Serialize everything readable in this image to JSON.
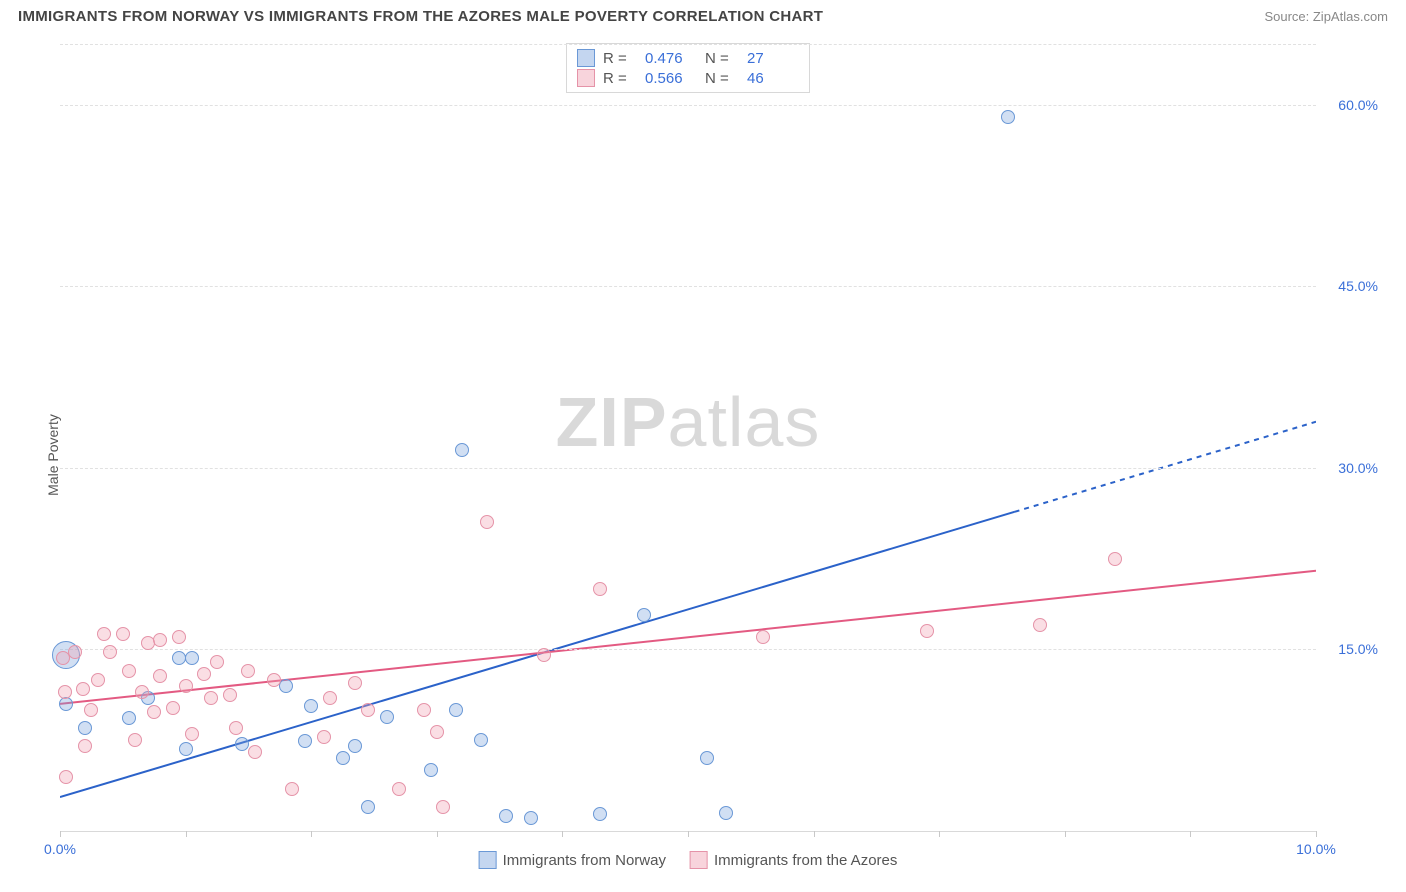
{
  "header": {
    "title": "IMMIGRANTS FROM NORWAY VS IMMIGRANTS FROM THE AZORES MALE POVERTY CORRELATION CHART",
    "source": "Source: ZipAtlas.com"
  },
  "watermark": {
    "bold": "ZIP",
    "light": "atlas"
  },
  "chart": {
    "type": "scatter",
    "ylabel": "Male Poverty",
    "xlim": [
      0,
      10
    ],
    "ylim": [
      0,
      65
    ],
    "x_ticks": [
      0,
      1,
      2,
      3,
      4,
      5,
      6,
      7,
      8,
      9,
      10
    ],
    "x_tick_labels": {
      "0": "0.0%",
      "10": "10.0%"
    },
    "y_grid": [
      15,
      30,
      45,
      60,
      65
    ],
    "y_tick_labels": {
      "15": "15.0%",
      "30": "30.0%",
      "45": "45.0%",
      "60": "60.0%"
    },
    "background_color": "#ffffff",
    "grid_color": "#e1e1e1",
    "axis_color": "#d9d9d9",
    "tick_label_color": "#3a6fd8",
    "series": [
      {
        "key": "norway",
        "label": "Immigrants from Norway",
        "fill": "rgba(124,164,222,0.35)",
        "stroke": "#6a98d6",
        "marker_radius": 7,
        "line_color": "#2b62c9",
        "line_width": 2,
        "trend": {
          "intercept": 2.8,
          "slope": 3.1,
          "solid_xmax": 7.6
        },
        "R": "0.476",
        "N": "27",
        "points": [
          {
            "x": 0.05,
            "y": 14.5,
            "r": 14
          },
          {
            "x": 0.05,
            "y": 10.5
          },
          {
            "x": 0.2,
            "y": 8.5
          },
          {
            "x": 0.55,
            "y": 9.3
          },
          {
            "x": 0.7,
            "y": 11.0
          },
          {
            "x": 0.95,
            "y": 14.3
          },
          {
            "x": 1.0,
            "y": 6.8
          },
          {
            "x": 1.05,
            "y": 14.3
          },
          {
            "x": 1.45,
            "y": 7.2
          },
          {
            "x": 1.8,
            "y": 12.0
          },
          {
            "x": 1.95,
            "y": 7.4
          },
          {
            "x": 2.0,
            "y": 10.3
          },
          {
            "x": 2.25,
            "y": 6.0
          },
          {
            "x": 2.35,
            "y": 7.0
          },
          {
            "x": 2.45,
            "y": 2.0
          },
          {
            "x": 2.6,
            "y": 9.4
          },
          {
            "x": 2.95,
            "y": 5.0
          },
          {
            "x": 3.15,
            "y": 10.0
          },
          {
            "x": 3.2,
            "y": 31.5
          },
          {
            "x": 3.35,
            "y": 7.5
          },
          {
            "x": 3.55,
            "y": 1.2
          },
          {
            "x": 3.75,
            "y": 1.1
          },
          {
            "x": 4.3,
            "y": 1.4
          },
          {
            "x": 4.65,
            "y": 17.8
          },
          {
            "x": 5.15,
            "y": 6.0
          },
          {
            "x": 5.3,
            "y": 1.5
          },
          {
            "x": 7.55,
            "y": 59.0
          }
        ]
      },
      {
        "key": "azores",
        "label": "Immigrants from the Azores",
        "fill": "rgba(240,160,178,0.35)",
        "stroke": "#e593a8",
        "marker_radius": 7,
        "line_color": "#e35a82",
        "line_width": 2,
        "trend": {
          "intercept": 10.5,
          "slope": 1.1,
          "solid_xmax": 10
        },
        "R": "0.566",
        "N": "46",
        "points": [
          {
            "x": 0.02,
            "y": 14.3
          },
          {
            "x": 0.04,
            "y": 11.5
          },
          {
            "x": 0.05,
            "y": 4.5
          },
          {
            "x": 0.12,
            "y": 14.8
          },
          {
            "x": 0.18,
            "y": 11.7
          },
          {
            "x": 0.2,
            "y": 7.0
          },
          {
            "x": 0.25,
            "y": 10.0
          },
          {
            "x": 0.3,
            "y": 12.5
          },
          {
            "x": 0.35,
            "y": 16.3
          },
          {
            "x": 0.4,
            "y": 14.8
          },
          {
            "x": 0.5,
            "y": 16.3
          },
          {
            "x": 0.55,
            "y": 13.2
          },
          {
            "x": 0.6,
            "y": 7.5
          },
          {
            "x": 0.65,
            "y": 11.5
          },
          {
            "x": 0.7,
            "y": 15.5
          },
          {
            "x": 0.75,
            "y": 9.8
          },
          {
            "x": 0.8,
            "y": 12.8
          },
          {
            "x": 0.8,
            "y": 15.8
          },
          {
            "x": 0.9,
            "y": 10.2
          },
          {
            "x": 0.95,
            "y": 16.0
          },
          {
            "x": 1.0,
            "y": 12.0
          },
          {
            "x": 1.05,
            "y": 8.0
          },
          {
            "x": 1.15,
            "y": 13.0
          },
          {
            "x": 1.2,
            "y": 11.0
          },
          {
            "x": 1.25,
            "y": 14.0
          },
          {
            "x": 1.35,
            "y": 11.2
          },
          {
            "x": 1.4,
            "y": 8.5
          },
          {
            "x": 1.5,
            "y": 13.2
          },
          {
            "x": 1.55,
            "y": 6.5
          },
          {
            "x": 1.7,
            "y": 12.5
          },
          {
            "x": 1.85,
            "y": 3.5
          },
          {
            "x": 2.1,
            "y": 7.8
          },
          {
            "x": 2.15,
            "y": 11.0
          },
          {
            "x": 2.35,
            "y": 12.2
          },
          {
            "x": 2.45,
            "y": 10.0
          },
          {
            "x": 2.7,
            "y": 3.5
          },
          {
            "x": 2.9,
            "y": 10.0
          },
          {
            "x": 3.0,
            "y": 8.2
          },
          {
            "x": 3.05,
            "y": 2.0
          },
          {
            "x": 3.4,
            "y": 25.5
          },
          {
            "x": 3.85,
            "y": 14.5
          },
          {
            "x": 4.3,
            "y": 20.0
          },
          {
            "x": 5.6,
            "y": 16.0
          },
          {
            "x": 6.9,
            "y": 16.5
          },
          {
            "x": 7.8,
            "y": 17.0
          },
          {
            "x": 8.4,
            "y": 22.5
          }
        ]
      }
    ],
    "legend_swatch": {
      "norway": {
        "fill": "rgba(124,164,222,0.45)",
        "stroke": "#6a98d6"
      },
      "azores": {
        "fill": "rgba(240,160,178,0.45)",
        "stroke": "#e593a8"
      }
    }
  }
}
